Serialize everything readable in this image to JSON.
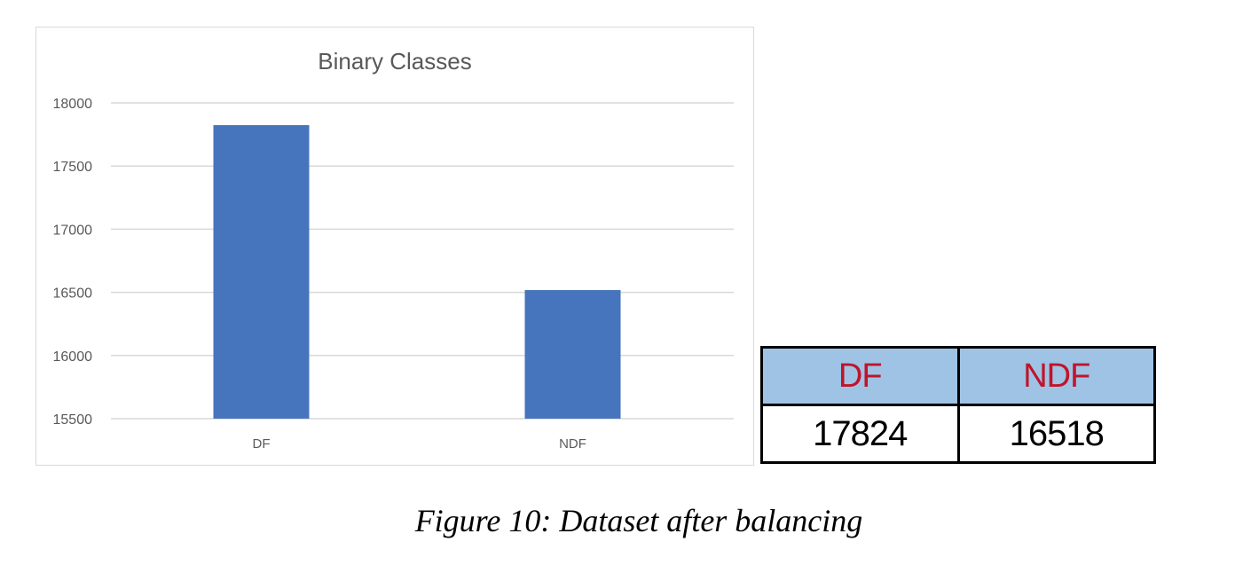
{
  "chart_data": {
    "type": "bar",
    "title": "Binary Classes",
    "categories": [
      "DF",
      "NDF"
    ],
    "values": [
      17824,
      16518
    ],
    "ylim": [
      15500,
      18000
    ],
    "yticks": [
      18000,
      17500,
      17000,
      16500,
      16000,
      15500
    ],
    "xlabel": "",
    "ylabel": "",
    "grid": true,
    "legend": "none",
    "bar_color": "#4775bd",
    "grid_color": "#d9d9d9"
  },
  "table": {
    "headers": [
      "DF",
      "NDF"
    ],
    "values": [
      "17824",
      "16518"
    ],
    "header_bg": "#9fc3e4",
    "header_text_color": "#c0142a"
  },
  "caption": "Figure 10: Dataset after balancing"
}
